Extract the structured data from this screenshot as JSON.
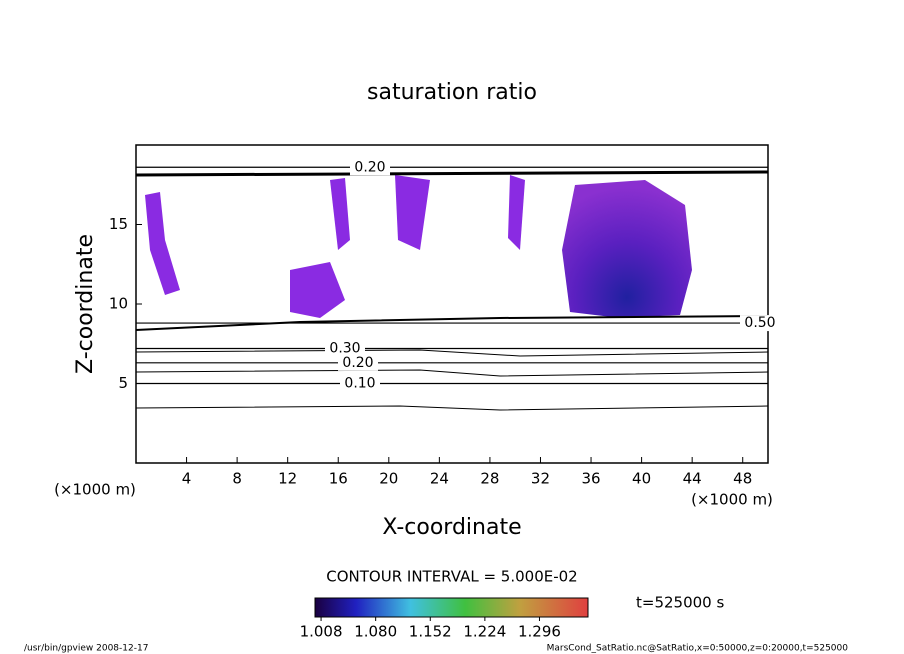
{
  "chart_data": {
    "type": "contour",
    "title": "saturation ratio",
    "x_label": "X-coordinate",
    "y_label": "Z-coordinate",
    "x_unit": "(×1000 m)",
    "y_unit": "(×1000 m)",
    "xlim": [
      0,
      50
    ],
    "xticks": [
      4,
      8,
      12,
      16,
      20,
      24,
      28,
      32,
      36,
      40,
      44,
      48
    ],
    "ylim": [
      0,
      20
    ],
    "yticks": [
      5,
      10,
      15
    ],
    "contours": [
      {
        "value": 0.1,
        "label": "0.10",
        "z": 5
      },
      {
        "value": 0.2,
        "label": "0.20",
        "z": 6.3
      },
      {
        "value": 0.3,
        "label": "0.30",
        "z": 7.2
      },
      {
        "value": 0.5,
        "label": "0.50",
        "z": 8.8
      },
      {
        "value": 0.2,
        "label": "0.20",
        "z": 18.6
      }
    ],
    "contour_interval": "CONTOUR INTERVAL = 5.000E-02",
    "colorbar": {
      "lim": [
        1.0,
        1.36
      ],
      "ticks": [
        {
          "value": 1.008,
          "label": "1.008"
        },
        {
          "value": 1.08,
          "label": "1.080"
        },
        {
          "value": 1.152,
          "label": "1.152"
        },
        {
          "value": 1.224,
          "label": "1.224"
        },
        {
          "value": 1.296,
          "label": "1.296"
        }
      ]
    },
    "time_label": "t=525000 s",
    "footer_left": "/usr/bin/gpview  2008-12-17",
    "footer_right": "MarsCond_SatRatio.nc@SatRatio,x=0:50000,z=0:20000,t=525000"
  }
}
